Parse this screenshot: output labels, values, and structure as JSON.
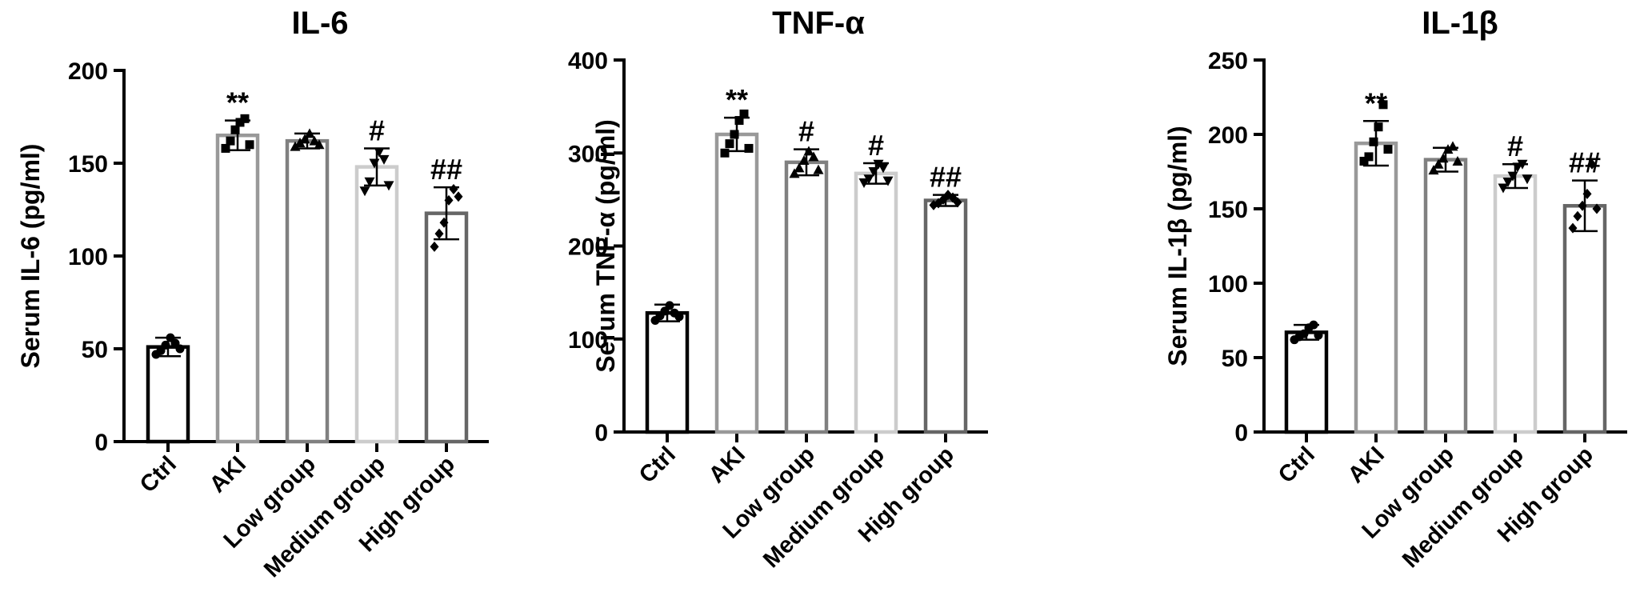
{
  "chart_data": [
    {
      "type": "bar",
      "title": "IL-6",
      "ylabel": "Serum IL-6 (pg/ml)",
      "xlabel": "",
      "ylim": [
        0,
        200
      ],
      "yticks": [
        0,
        50,
        100,
        150,
        200
      ],
      "categories": [
        "Ctrl",
        "AKI",
        "Low group",
        "Medium group",
        "High group"
      ],
      "values": [
        51,
        165,
        162,
        148,
        123
      ],
      "errors": [
        5,
        8,
        4,
        10,
        14
      ],
      "significance": [
        "",
        "**",
        "",
        "#",
        "##"
      ],
      "points": [
        [
          47,
          49,
          52,
          56,
          53,
          50
        ],
        [
          158,
          162,
          168,
          172,
          174,
          160
        ],
        [
          159,
          161,
          163,
          166,
          162,
          160
        ],
        [
          135,
          140,
          150,
          156,
          152,
          138
        ],
        [
          105,
          112,
          118,
          130,
          136,
          132
        ]
      ],
      "bar_colors": [
        "#000000",
        "#999999",
        "#808080",
        "#cccccc",
        "#666666"
      ]
    },
    {
      "type": "bar",
      "title": "TNF-α",
      "ylabel": "Serum TNF-α (pg/ml)",
      "xlabel": "",
      "ylim": [
        0,
        400
      ],
      "yticks": [
        0,
        100,
        200,
        300,
        400
      ],
      "categories": [
        "Ctrl",
        "AKI",
        "Low group",
        "Medium group",
        "High group"
      ],
      "values": [
        128,
        320,
        290,
        278,
        249
      ],
      "errors": [
        9,
        18,
        14,
        11,
        6
      ],
      "significance": [
        "",
        "**",
        "#",
        "#",
        "##"
      ],
      "points": [
        [
          120,
          125,
          130,
          136,
          128,
          124
        ],
        [
          300,
          310,
          320,
          335,
          342,
          305
        ],
        [
          278,
          284,
          292,
          302,
          296,
          282
        ],
        [
          268,
          272,
          280,
          288,
          284,
          270
        ],
        [
          244,
          246,
          250,
          255,
          252,
          247
        ]
      ],
      "bar_colors": [
        "#000000",
        "#999999",
        "#808080",
        "#cccccc",
        "#666666"
      ]
    },
    {
      "type": "bar",
      "title": "IL-1β",
      "ylabel": "Serum IL-1β (pg/ml)",
      "xlabel": "",
      "ylim": [
        0,
        250
      ],
      "yticks": [
        0,
        50,
        100,
        150,
        200,
        250
      ],
      "categories": [
        "Ctrl",
        "AKI",
        "Low group",
        "Medium group",
        "High group"
      ],
      "values": [
        67,
        194,
        183,
        172,
        152
      ],
      "errors": [
        5,
        15,
        8,
        8,
        17
      ],
      "significance": [
        "",
        "**",
        "",
        "#",
        "##"
      ],
      "points": [
        [
          62,
          64,
          66,
          70,
          72,
          65
        ],
        [
          182,
          185,
          195,
          205,
          220,
          190
        ],
        [
          176,
          180,
          184,
          190,
          192,
          182
        ],
        [
          164,
          168,
          172,
          178,
          180,
          170
        ],
        [
          137,
          145,
          152,
          160,
          180,
          150
        ]
      ],
      "bar_colors": [
        "#000000",
        "#999999",
        "#808080",
        "#cccccc",
        "#666666"
      ]
    }
  ]
}
